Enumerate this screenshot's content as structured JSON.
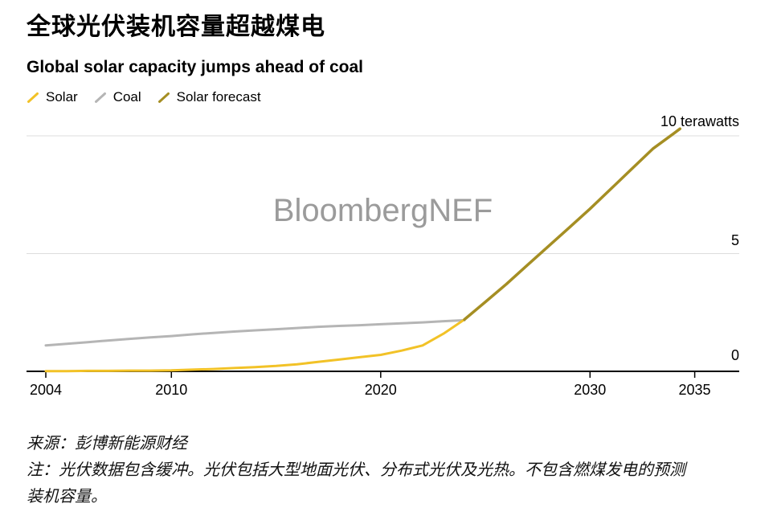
{
  "header": {
    "title": "全球光伏装机容量超越煤电",
    "subtitle": "Global solar capacity jumps ahead of coal"
  },
  "legend": [
    {
      "label": "Solar",
      "color": "#F2C227"
    },
    {
      "label": "Coal",
      "color": "#B5B5B5"
    },
    {
      "label": "Solar forecast",
      "color": "#A58E23"
    }
  ],
  "watermark": "BloombergNEF",
  "footer": {
    "source": "来源：彭博新能源财经",
    "note_line1": "注：光伏数据包含缓冲。光伏包括大型地面光伏、分布式光伏及光热。不包含燃煤发电的预测",
    "note_line2": "装机容量。"
  },
  "chart_data": {
    "type": "line",
    "title": "Global solar capacity jumps ahead of coal",
    "unit": "terawatts",
    "x_axis": {
      "ticks": [
        2004,
        2010,
        2020,
        2030,
        2035
      ],
      "range": [
        2003,
        2037.5
      ]
    },
    "y_axis": {
      "ticks": [
        0,
        5,
        10
      ],
      "top_label": "10 terawatts",
      "gridlines": [
        5,
        10
      ],
      "range": [
        0,
        10.5
      ],
      "position": "right"
    },
    "series": [
      {
        "name": "Coal",
        "color": "#B5B5B5",
        "width": 3,
        "points": [
          [
            2004,
            1.1
          ],
          [
            2005,
            1.17
          ],
          [
            2006,
            1.24
          ],
          [
            2007,
            1.31
          ],
          [
            2008,
            1.38
          ],
          [
            2009,
            1.44
          ],
          [
            2010,
            1.5
          ],
          [
            2011,
            1.57
          ],
          [
            2012,
            1.63
          ],
          [
            2013,
            1.69
          ],
          [
            2014,
            1.74
          ],
          [
            2015,
            1.79
          ],
          [
            2016,
            1.84
          ],
          [
            2017,
            1.89
          ],
          [
            2018,
            1.93
          ],
          [
            2019,
            1.96
          ],
          [
            2020,
            2.0
          ],
          [
            2021,
            2.04
          ],
          [
            2022,
            2.08
          ],
          [
            2023,
            2.13
          ],
          [
            2024,
            2.17
          ]
        ]
      },
      {
        "name": "Solar",
        "color": "#F2C227",
        "width": 3,
        "points": [
          [
            2004,
            0.01
          ],
          [
            2005,
            0.01
          ],
          [
            2006,
            0.02
          ],
          [
            2007,
            0.02
          ],
          [
            2008,
            0.03
          ],
          [
            2009,
            0.03
          ],
          [
            2010,
            0.04
          ],
          [
            2011,
            0.07
          ],
          [
            2012,
            0.1
          ],
          [
            2013,
            0.14
          ],
          [
            2014,
            0.18
          ],
          [
            2015,
            0.23
          ],
          [
            2016,
            0.3
          ],
          [
            2017,
            0.4
          ],
          [
            2018,
            0.5
          ],
          [
            2019,
            0.6
          ],
          [
            2020,
            0.7
          ],
          [
            2021,
            0.88
          ],
          [
            2022,
            1.1
          ],
          [
            2023,
            1.6
          ],
          [
            2024,
            2.2
          ]
        ]
      },
      {
        "name": "Solar forecast",
        "color": "#A58E23",
        "width": 3.5,
        "points": [
          [
            2024,
            2.2
          ],
          [
            2025,
            2.95
          ],
          [
            2026,
            3.7
          ],
          [
            2027,
            4.5
          ],
          [
            2028,
            5.3
          ],
          [
            2029,
            6.1
          ],
          [
            2030,
            6.9
          ],
          [
            2031,
            7.75
          ],
          [
            2032,
            8.6
          ],
          [
            2033,
            9.45
          ],
          [
            2034,
            10.1
          ],
          [
            2034.3,
            10.3
          ]
        ]
      }
    ]
  }
}
